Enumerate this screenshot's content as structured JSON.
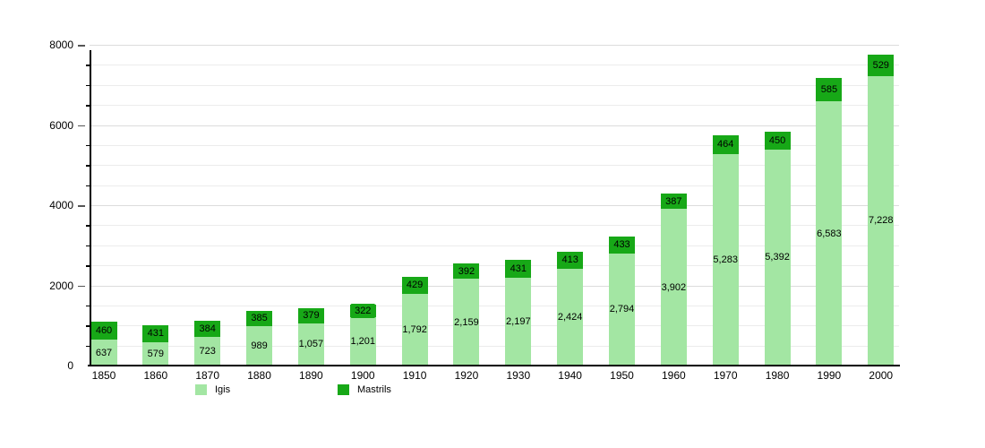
{
  "chart_data": {
    "type": "bar",
    "stacked": true,
    "title": "",
    "xlabel": "",
    "ylabel": "",
    "categories": [
      "1850",
      "1860",
      "1870",
      "1880",
      "1890",
      "1900",
      "1910",
      "1920",
      "1930",
      "1940",
      "1950",
      "1960",
      "1970",
      "1980",
      "1990",
      "2000"
    ],
    "series": [
      {
        "name": "Igis",
        "color": "#a3e6a3",
        "values": [
          637,
          579,
          723,
          989,
          1057,
          1201,
          1792,
          2159,
          2197,
          2424,
          2794,
          3902,
          5283,
          5392,
          6583,
          7228
        ],
        "labels": [
          "637",
          "579",
          "723",
          "989",
          "1,057",
          "1,201",
          "1,792",
          "2,159",
          "2,197",
          "2,424",
          "2,794",
          "3,902",
          "5,283",
          "5,392",
          "6,583",
          "7,228"
        ]
      },
      {
        "name": "Mastrils",
        "color": "#17a817",
        "values": [
          460,
          431,
          384,
          385,
          379,
          322,
          429,
          392,
          431,
          413,
          433,
          387,
          464,
          450,
          585,
          529
        ],
        "labels": [
          "460",
          "431",
          "384",
          "385",
          "379",
          "322",
          "429",
          "392",
          "431",
          "413",
          "433",
          "387",
          "464",
          "450",
          "585",
          "529"
        ]
      }
    ],
    "ylim": [
      0,
      8000
    ],
    "y_ticks": [
      {
        "value": 0,
        "label": "0"
      },
      {
        "value": 2000,
        "label": "2000"
      },
      {
        "value": 4000,
        "label": "4000"
      },
      {
        "value": 6000,
        "label": "6000"
      },
      {
        "value": 8000,
        "label": "8000"
      }
    ],
    "minor_grid_step": 500,
    "grid": true,
    "legend_position": "bottom"
  },
  "legend": {
    "items": [
      {
        "label": "Igis",
        "color": "#a3e6a3"
      },
      {
        "label": "Mastrils",
        "color": "#17a817"
      }
    ]
  }
}
